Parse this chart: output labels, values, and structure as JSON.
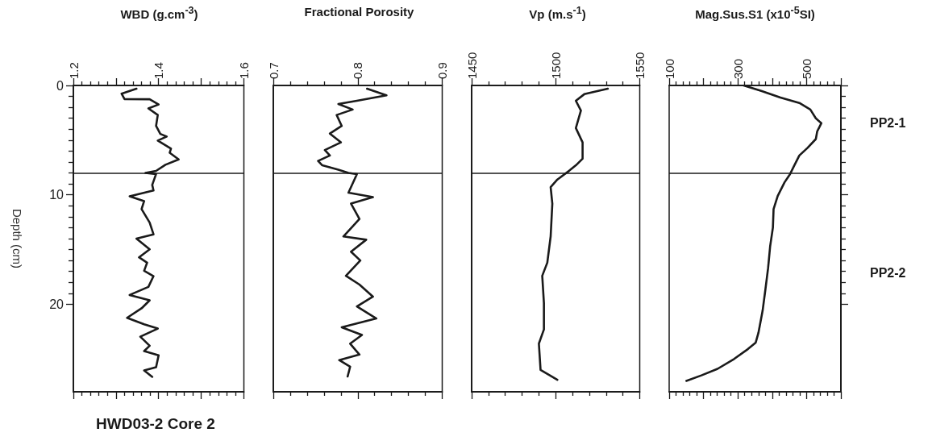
{
  "chart_data": [
    {
      "type": "line",
      "xlabel": "WBD (g.cm$^{-3}$)",
      "ylabel": "Depth (cm)",
      "xlim": [
        1.2,
        1.6
      ],
      "xticks": [
        1.2,
        {
          "value": 1.3,
          "label": null
        },
        1.4,
        {
          "value": 1.5,
          "label": null
        },
        1.6
      ],
      "ylim": [
        28,
        0
      ],
      "yticks": [
        0,
        10,
        20
      ],
      "ref_lines": [
        {
          "axis": "y",
          "value": 8,
          "color": "#1a1a1a"
        }
      ],
      "annotations": [
        "HWD03-2 Core 2"
      ],
      "series": [
        {
          "color": "#1a1a1a",
          "x": [
            1.348,
            1.313,
            1.32,
            1.379,
            1.4,
            1.376,
            1.398,
            1.394,
            1.404,
            1.419,
            1.398,
            1.429,
            1.426,
            1.447,
            1.416,
            1.394,
            1.369,
            1.394,
            1.385,
            1.388,
            1.332,
            1.366,
            1.36,
            1.379,
            1.388,
            1.348,
            1.379,
            1.354,
            1.373,
            1.366,
            1.388,
            1.376,
            1.332,
            1.379,
            1.36,
            1.326,
            1.366,
            1.398,
            1.357,
            1.379,
            1.366,
            1.4,
            1.394,
            1.366,
            1.385
          ],
          "values": [
            0.3,
            0.75,
            1.24,
            1.26,
            1.74,
            2.1,
            2.7,
            3.7,
            4.43,
            4.67,
            5.04,
            5.78,
            6.15,
            6.76,
            7.25,
            7.81,
            7.99,
            8.1,
            9.09,
            9.6,
            10.13,
            10.57,
            11.3,
            12.53,
            13.61,
            14,
            14.98,
            15.71,
            16.2,
            16.94,
            17.43,
            18.41,
            19.15,
            19.64,
            20.37,
            21.24,
            21.83,
            22.22,
            22.96,
            23.79,
            24.28,
            24.67,
            25.75,
            26.04,
            26.63
          ]
        }
      ]
    },
    {
      "type": "line",
      "xlabel": "Fractional Porosity",
      "xlim": [
        0.7,
        0.9
      ],
      "xticks": [
        0.7,
        0.8,
        0.9
      ],
      "ylim": [
        28,
        0
      ],
      "yticks": [
        0,
        10,
        20
      ],
      "tick_labels": "x",
      "ref_lines": [
        {
          "axis": "y",
          "value": 8,
          "color": "#1a1a1a"
        }
      ],
      "series": [
        {
          "color": "#1a1a1a",
          "x": [
            0.811,
            0.834,
            0.799,
            0.777,
            0.794,
            0.775,
            0.781,
            0.767,
            0.78,
            0.761,
            0.767,
            0.753,
            0.758,
            0.777,
            0.789,
            0.799,
            0.789,
            0.818,
            0.792,
            0.802,
            0.783,
            0.81,
            0.792,
            0.803,
            0.786,
            0.802,
            0.818,
            0.799,
            0.822,
            0.781,
            0.805,
            0.791,
            0.802,
            0.778,
            0.791,
            0.788
          ],
          "values": [
            0.3,
            0.9,
            1.4,
            1.7,
            2.2,
            2.7,
            3.7,
            4.4,
            5.2,
            5.9,
            6.4,
            6.9,
            7.3,
            7.7,
            8.0,
            8.1,
            9.8,
            10.2,
            10.8,
            12.2,
            13.8,
            14.1,
            15.2,
            16,
            17.4,
            18.2,
            19.3,
            20.2,
            21.3,
            22.1,
            22.8,
            23.6,
            24.6,
            25.1,
            25.7,
            26.6
          ]
        }
      ]
    },
    {
      "type": "line",
      "xlabel": "Vp (m.s$^{-1}$)",
      "xlim": [
        1450,
        1550
      ],
      "xticks": [
        1450,
        1500,
        1550
      ],
      "ylim": [
        28,
        0
      ],
      "yticks": [
        0,
        10,
        20
      ],
      "tick_labels": "x",
      "ref_lines": [
        {
          "axis": "y",
          "value": 8,
          "color": "#1a1a1a"
        }
      ],
      "series": [
        {
          "color": "#1a1a1a",
          "x": [
            1531,
            1517,
            1512,
            1515,
            1512,
            1516,
            1516,
            1512,
            1508,
            1501,
            1497,
            1498,
            1497,
            1495,
            1492,
            1493,
            1493,
            1490,
            1491,
            1501
          ],
          "values": [
            0.3,
            0.8,
            1.4,
            2.3,
            3.9,
            5.2,
            6.7,
            7.3,
            7.8,
            8.6,
            9.3,
            10.8,
            13.8,
            16.2,
            17.4,
            19.9,
            22.3,
            23.6,
            26,
            26.9
          ]
        }
      ]
    },
    {
      "type": "line",
      "xlabel": "Mag.Sus.S1 (x10$^{-5}$SI)",
      "xlim": [
        100,
        600
      ],
      "xticks": [
        100,
        {
          "value": 200,
          "label": null
        },
        300,
        {
          "value": 400,
          "label": null
        },
        500,
        {
          "value": 600,
          "label": null
        }
      ],
      "ylim": [
        28,
        0
      ],
      "yticks": [
        0,
        10,
        20
      ],
      "tick_labels": "x",
      "ref_lines": [
        {
          "axis": "y",
          "value": 8,
          "color": "#1a1a1a"
        }
      ],
      "annotations": [
        "PP2-1",
        "PP2-2"
      ],
      "series": [
        {
          "color": "#1a1a1a",
          "x": [
            317,
            368,
            424,
            479,
            511,
            527,
            543,
            531,
            527,
            503,
            479,
            463,
            452,
            436,
            416,
            404,
            402,
            394,
            388,
            380,
            372,
            360,
            352,
            329,
            289,
            241,
            194,
            150
          ],
          "values": [
            0,
            0.5,
            1.1,
            1.6,
            2.2,
            3,
            3.45,
            4.2,
            4.9,
            5.7,
            6.4,
            7.4,
            8.1,
            8.85,
            10.1,
            11.3,
            13,
            14.7,
            16.7,
            18.7,
            20.6,
            22.6,
            23.5,
            24.1,
            25,
            25.9,
            26.5,
            27
          ]
        }
      ]
    }
  ]
}
